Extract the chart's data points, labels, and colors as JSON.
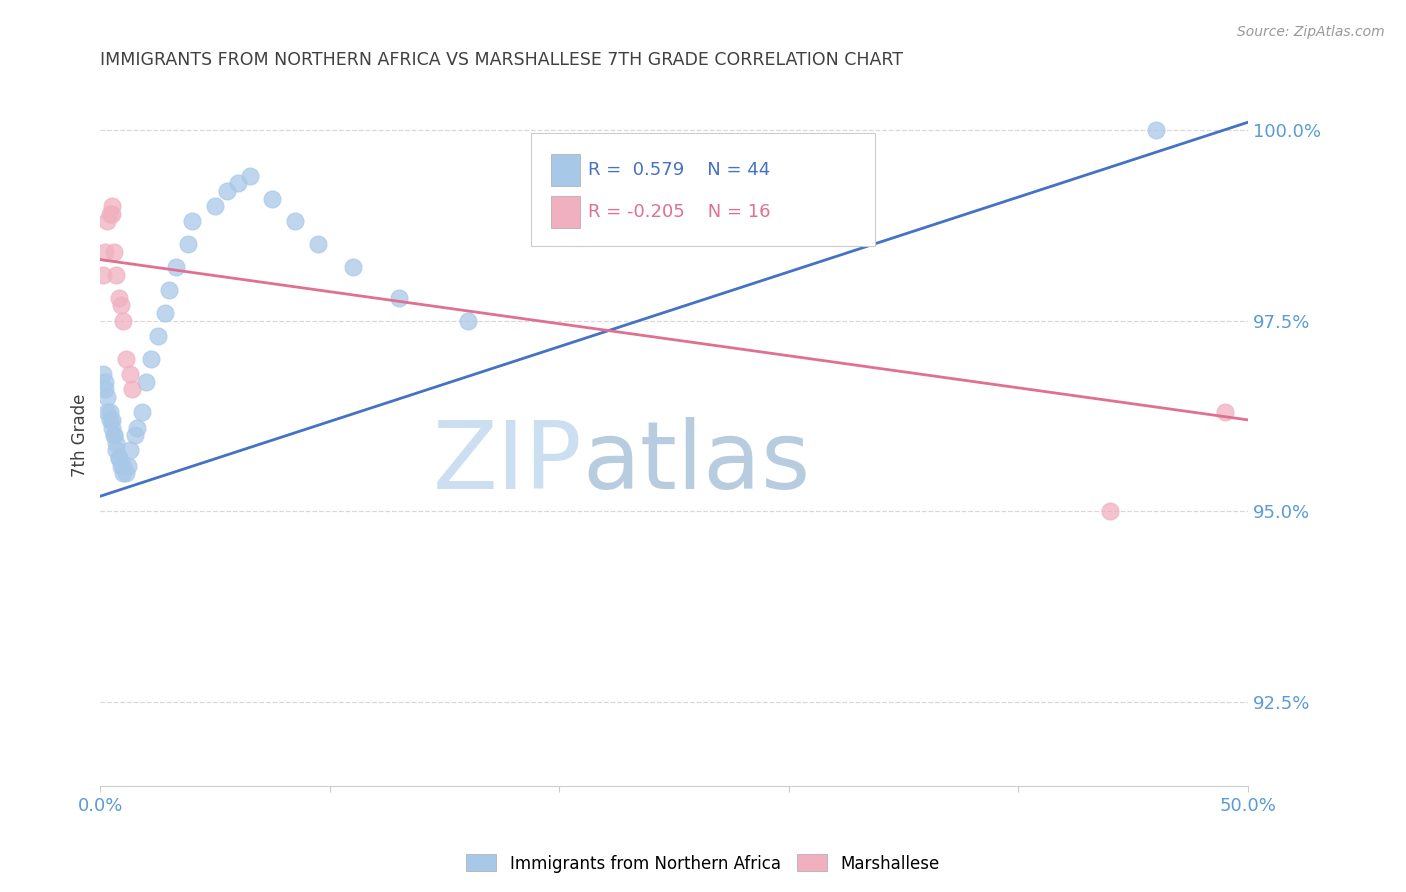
{
  "title": "IMMIGRANTS FROM NORTHERN AFRICA VS MARSHALLESE 7TH GRADE CORRELATION CHART",
  "source": "Source: ZipAtlas.com",
  "ylabel": "7th Grade",
  "yaxis_labels": [
    "100.0%",
    "97.5%",
    "95.0%",
    "92.5%"
  ],
  "xlim": [
    0.0,
    0.5
  ],
  "ylim": [
    0.914,
    1.006
  ],
  "yticks": [
    1.0,
    0.975,
    0.95,
    0.925
  ],
  "xticks": [
    0.0,
    0.1,
    0.2,
    0.3,
    0.4,
    0.5
  ],
  "legend_blue_label": "Immigrants from Northern Africa",
  "legend_pink_label": "Marshallese",
  "R_blue": 0.579,
  "N_blue": 44,
  "R_pink": -0.205,
  "N_pink": 16,
  "blue_scatter_x": [
    0.001,
    0.002,
    0.002,
    0.003,
    0.003,
    0.004,
    0.004,
    0.005,
    0.005,
    0.006,
    0.006,
    0.007,
    0.007,
    0.008,
    0.008,
    0.009,
    0.01,
    0.01,
    0.011,
    0.012,
    0.013,
    0.015,
    0.016,
    0.018,
    0.02,
    0.022,
    0.025,
    0.028,
    0.03,
    0.033,
    0.038,
    0.04,
    0.05,
    0.055,
    0.06,
    0.065,
    0.075,
    0.085,
    0.095,
    0.11,
    0.13,
    0.16,
    0.27,
    0.46
  ],
  "blue_scatter_y": [
    0.968,
    0.967,
    0.966,
    0.965,
    0.963,
    0.963,
    0.962,
    0.962,
    0.961,
    0.96,
    0.96,
    0.959,
    0.958,
    0.957,
    0.957,
    0.956,
    0.956,
    0.955,
    0.955,
    0.956,
    0.958,
    0.96,
    0.961,
    0.963,
    0.967,
    0.97,
    0.973,
    0.976,
    0.979,
    0.982,
    0.985,
    0.988,
    0.99,
    0.992,
    0.993,
    0.994,
    0.991,
    0.988,
    0.985,
    0.982,
    0.978,
    0.975,
    0.998,
    1.0
  ],
  "pink_scatter_x": [
    0.001,
    0.002,
    0.003,
    0.004,
    0.005,
    0.005,
    0.006,
    0.007,
    0.008,
    0.009,
    0.01,
    0.011,
    0.013,
    0.014,
    0.44,
    0.49
  ],
  "pink_scatter_y": [
    0.981,
    0.984,
    0.988,
    0.989,
    0.989,
    0.99,
    0.984,
    0.981,
    0.978,
    0.977,
    0.975,
    0.97,
    0.968,
    0.966,
    0.95,
    0.963
  ],
  "blue_line_x": [
    0.0,
    0.5
  ],
  "blue_line_y": [
    0.952,
    1.001
  ],
  "pink_line_x": [
    0.0,
    0.5
  ],
  "pink_line_y": [
    0.983,
    0.962
  ],
  "background_color": "#ffffff",
  "blue_color": "#a8c8e8",
  "pink_color": "#f0b0c0",
  "blue_line_color": "#4472c4",
  "pink_line_color": "#e07090",
  "title_color": "#404040",
  "axis_label_color": "#5b9bd5",
  "ylabel_color": "#404040",
  "watermark_zip_color": "#d8e8f4",
  "watermark_atlas_color": "#c8d8e8",
  "grid_color": "#d8d8d8"
}
